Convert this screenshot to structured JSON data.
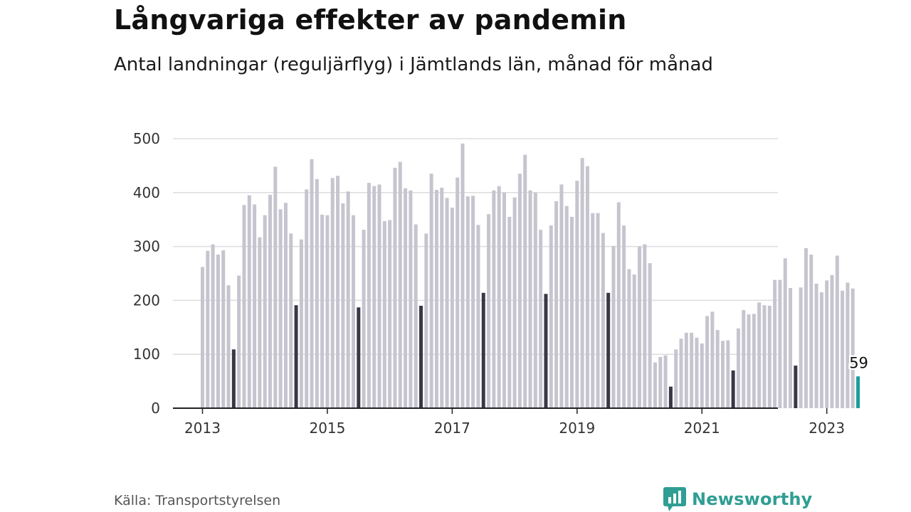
{
  "header": {
    "title": "Långvariga effekter av pandemin",
    "subtitle": "Antal landningar (reguljärflyg) i Jämtlands län, månad för månad"
  },
  "footer": {
    "source": "Källa: Transportstyrelsen",
    "brand": "Newsworthy"
  },
  "colors": {
    "bar": "#c6c5cf",
    "july_bar": "#3a3846",
    "latest_bar": "#1a9e9a",
    "gridline": "#dddddd",
    "axis": "#222222",
    "brand": "#2f9e93"
  },
  "chart_data": {
    "type": "bar",
    "x_tick_labels": [
      "2013",
      "2015",
      "2017",
      "2019",
      "2021",
      "2023"
    ],
    "ylim": [
      0,
      500
    ],
    "y_ticks": [
      0,
      100,
      200,
      300,
      400,
      500
    ],
    "grid": true,
    "highlight": "July of each year shown in dark; latest month in teal with data label",
    "start": "2013-01",
    "end": "2023-07",
    "values": [
      262,
      292,
      304,
      285,
      293,
      228,
      109,
      246,
      377,
      395,
      378,
      317,
      358,
      396,
      448,
      369,
      381,
      324,
      191,
      313,
      406,
      462,
      425,
      359,
      358,
      427,
      431,
      380,
      402,
      358,
      187,
      331,
      418,
      412,
      415,
      347,
      349,
      446,
      457,
      408,
      404,
      341,
      190,
      324,
      435,
      405,
      409,
      390,
      372,
      428,
      491,
      393,
      394,
      340,
      214,
      360,
      404,
      412,
      400,
      355,
      391,
      435,
      470,
      404,
      400,
      331,
      212,
      339,
      384,
      415,
      375,
      355,
      422,
      464,
      449,
      362,
      362,
      325,
      214,
      301,
      382,
      339,
      258,
      248,
      300,
      304,
      269,
      85,
      95,
      98,
      40,
      109,
      129,
      140,
      140,
      131,
      120,
      171,
      179,
      145,
      125,
      126,
      70,
      148,
      182,
      174,
      175,
      196,
      191,
      190,
      238,
      238,
      278,
      223,
      79,
      224,
      297,
      285,
      231,
      215,
      237,
      247,
      283,
      218,
      233,
      222,
      59
    ],
    "latest_label": "59"
  }
}
